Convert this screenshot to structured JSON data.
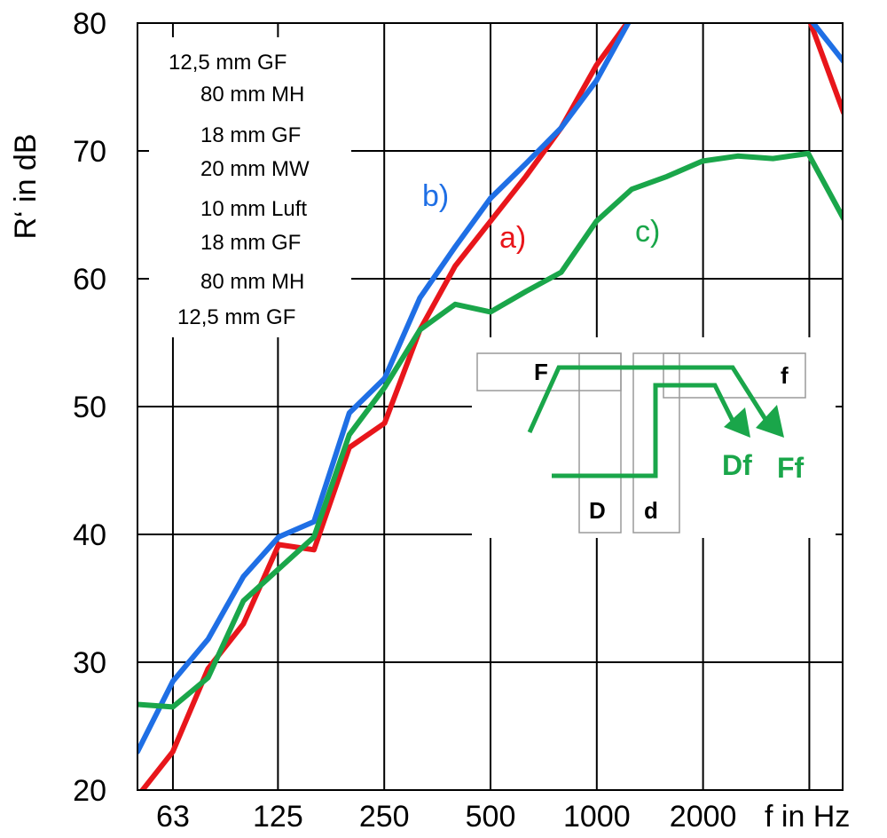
{
  "chart_data": {
    "type": "line",
    "xlabel": "f in Hz",
    "ylabel": "R‘ in dB",
    "ylim": [
      20,
      80
    ],
    "x_scale": "log (third-octave bands)",
    "grid": true,
    "x_tick_labels": [
      "63",
      "125",
      "250",
      "500",
      "1000",
      "2000"
    ],
    "y_ticks": [
      20,
      30,
      40,
      50,
      60,
      70,
      80
    ],
    "x": [
      50,
      63,
      80,
      100,
      125,
      160,
      200,
      250,
      315,
      400,
      500,
      630,
      800,
      1000,
      1250,
      1600,
      2000,
      2500,
      3150,
      4000,
      5000
    ],
    "series": [
      {
        "name": "a)",
        "color": "#e8161b",
        "values": [
          19.5,
          23,
          29.5,
          33,
          39.2,
          38.8,
          46.8,
          48.7,
          56,
          61,
          64.5,
          68,
          71.8,
          76.7,
          80.5,
          null,
          null,
          null,
          null,
          80.5,
          73
        ]
      },
      {
        "name": "b)",
        "color": "#1f6fe5",
        "values": [
          23,
          28.5,
          31.8,
          36.7,
          39.8,
          41,
          49.5,
          52.2,
          58.5,
          62.5,
          66.3,
          69,
          71.8,
          75.5,
          80.5,
          null,
          null,
          null,
          null,
          80.5,
          77
        ]
      },
      {
        "name": "c)",
        "color": "#1aa64a",
        "values": [
          26.7,
          26.5,
          28.8,
          34.8,
          37.3,
          39.8,
          47.8,
          51.5,
          56,
          58,
          57.4,
          59,
          60.5,
          64.5,
          67,
          68,
          69.2,
          69.6,
          69.4,
          69.8,
          64.7
        ]
      }
    ],
    "annotations": {
      "layer_stack": [
        "12,5 mm GF",
        "80 mm MH",
        "18 mm GF",
        "20 mm MW",
        "10 mm Luft",
        "18 mm GF",
        "80 mm MH",
        "12,5 mm GF"
      ],
      "inset_labels": {
        "F": "F",
        "f": "f",
        "D": "D",
        "d": "d"
      },
      "path_labels": {
        "Df": "Df",
        "Ff": "Ff"
      }
    }
  }
}
